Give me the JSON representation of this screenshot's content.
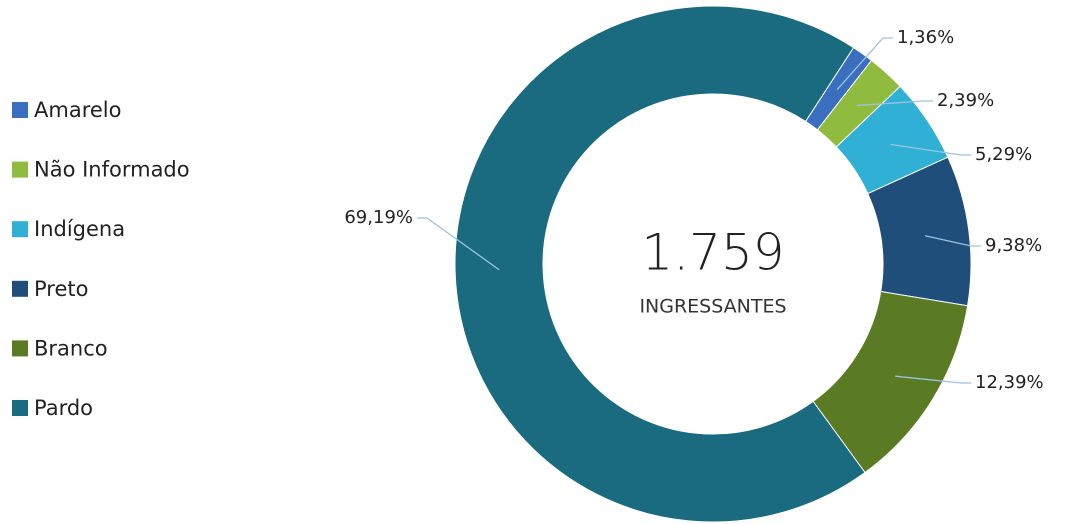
{
  "chart_data": {
    "type": "donut",
    "categories": [
      "Amarelo",
      "Não Informado",
      "Indígena",
      "Preto",
      "Branco",
      "Pardo"
    ],
    "values": [
      1.36,
      2.39,
      5.29,
      9.38,
      12.39,
      69.19
    ],
    "value_labels": [
      "1,36%",
      "2,39%",
      "5,29%",
      "9,38%",
      "12,39%",
      "69,19%"
    ],
    "colors": [
      "#3a6fbf",
      "#8fbc3f",
      "#2fb0d4",
      "#1f4e7a",
      "#5a7a24",
      "#1a6a80"
    ],
    "total": {
      "value": 1759,
      "label": "1.759"
    },
    "center_label": "INGRESSANTES",
    "legend": "left"
  }
}
